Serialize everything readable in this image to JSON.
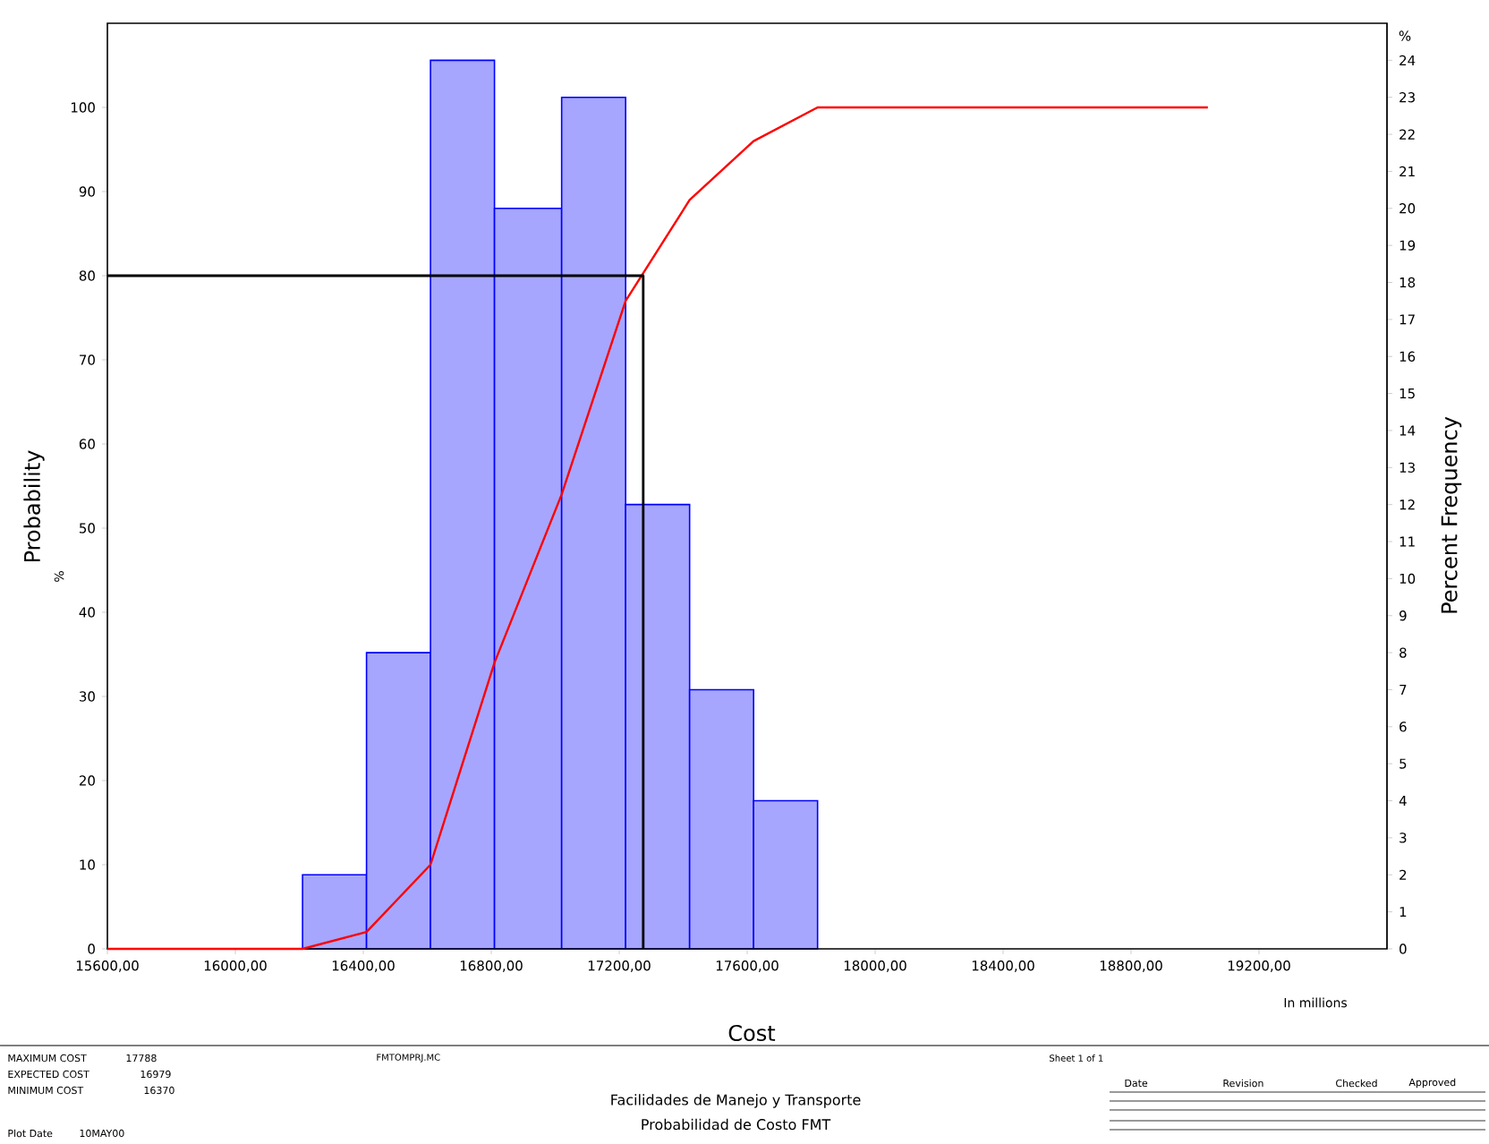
{
  "chart_data": {
    "type": "histogram",
    "xlabel": "Cost",
    "ylabel": "Probability",
    "y2label": "Percent Frequency",
    "xlim": [
      15600,
      19600
    ],
    "xticks": [
      {
        "value": 15600,
        "label": "15600,00"
      },
      {
        "value": 16000,
        "label": "16000,00"
      },
      {
        "value": 16400,
        "label": "16400,00"
      },
      {
        "value": 16800,
        "label": "16800,00"
      },
      {
        "value": 17200,
        "label": "17200,00"
      },
      {
        "value": 17600,
        "label": "17600,00"
      },
      {
        "value": 18000,
        "label": "18000,00"
      },
      {
        "value": 18400,
        "label": "18400,00"
      },
      {
        "value": 18800,
        "label": "18800,00"
      },
      {
        "value": 19200,
        "label": "19200,00"
      }
    ],
    "ylim": [
      0,
      110
    ],
    "yticks": [
      0,
      10,
      20,
      30,
      40,
      50,
      60,
      70,
      80,
      90,
      100
    ],
    "y2lim": [
      0,
      25
    ],
    "y2ticks": [
      0,
      1,
      2,
      3,
      4,
      5,
      6,
      7,
      8,
      9,
      10,
      11,
      12,
      13,
      14,
      15,
      16,
      17,
      18,
      19,
      20,
      21,
      22,
      23,
      24
    ],
    "series": [
      {
        "axis": "y2",
        "color": "#0000ff",
        "bins": [
          16210,
          16410,
          16610,
          16810,
          17020,
          17220,
          17420,
          17620,
          17820
        ],
        "values": [
          2,
          8,
          24,
          20,
          23,
          12,
          7,
          4
        ]
      },
      {
        "type": "line",
        "color": "#ff0000",
        "x": [
          15600,
          16210,
          16410,
          16610,
          16810,
          17020,
          17220,
          17420,
          17620,
          17820,
          19040
        ],
        "values": [
          0,
          0,
          2,
          10,
          34,
          54,
          77,
          89,
          96,
          100,
          100
        ]
      },
      {
        "type": "line",
        "color": "#000000",
        "x": [
          15600,
          17275,
          17275
        ],
        "values": [
          80,
          80,
          0
        ]
      }
    ],
    "annotations": [
      "%",
      "%",
      "In millions",
      "MAXIMUM COST",
      "17788",
      "EXPECTED COST",
      "16979",
      "MINIMUM COST",
      "16370",
      "Plot Date",
      "10MAY00",
      "FMTOMPRJ.MC",
      "Sheet 1 of 1",
      "Facilidades de Manejo y Transporte",
      "Probabilidad de Costo FMT",
      "Date",
      "Revision",
      "Checked",
      "Approved"
    ]
  }
}
